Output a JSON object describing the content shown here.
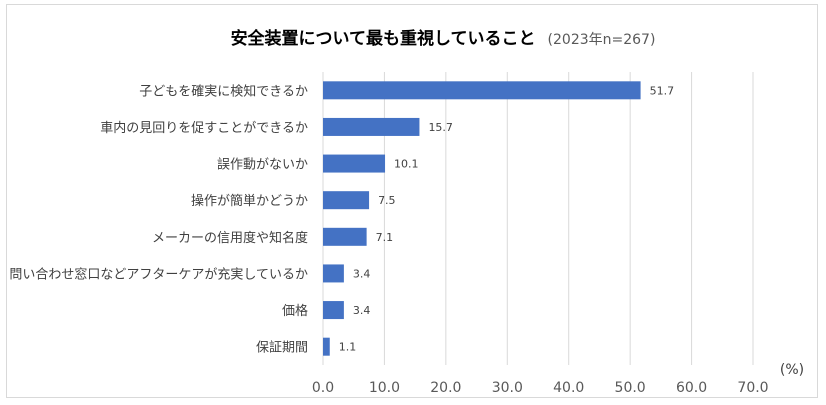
{
  "chart_data": {
    "type": "bar",
    "orientation": "horizontal",
    "title": "安全装置について最も重視していること",
    "subtitle": "(2023年n=267)",
    "unit": "(%)",
    "categories": [
      "子どもを確実に検知できるか",
      "車内の見回りを促すことができるか",
      "誤作動がないか",
      "操作が簡単かどうか",
      "メーカーの信用度や知名度",
      "問い合わせ窓口などアフターケアが充実しているか",
      "価格",
      "保証期間"
    ],
    "values": [
      51.7,
      15.7,
      10.1,
      7.5,
      7.1,
      3.4,
      3.4,
      1.1
    ],
    "value_labels": [
      "51.7",
      "15.7",
      "10.1",
      "7.5",
      "7.1",
      "3.4",
      "3.4",
      "1.1"
    ],
    "xlim": [
      0,
      70
    ],
    "ticks": [
      "0.0",
      "10.0",
      "20.0",
      "30.0",
      "40.0",
      "50.0",
      "60.0",
      "70.0"
    ],
    "grid": true,
    "legend": "none",
    "colors": {
      "bar": "#4472c4",
      "grid": "#d9d9d9"
    }
  }
}
